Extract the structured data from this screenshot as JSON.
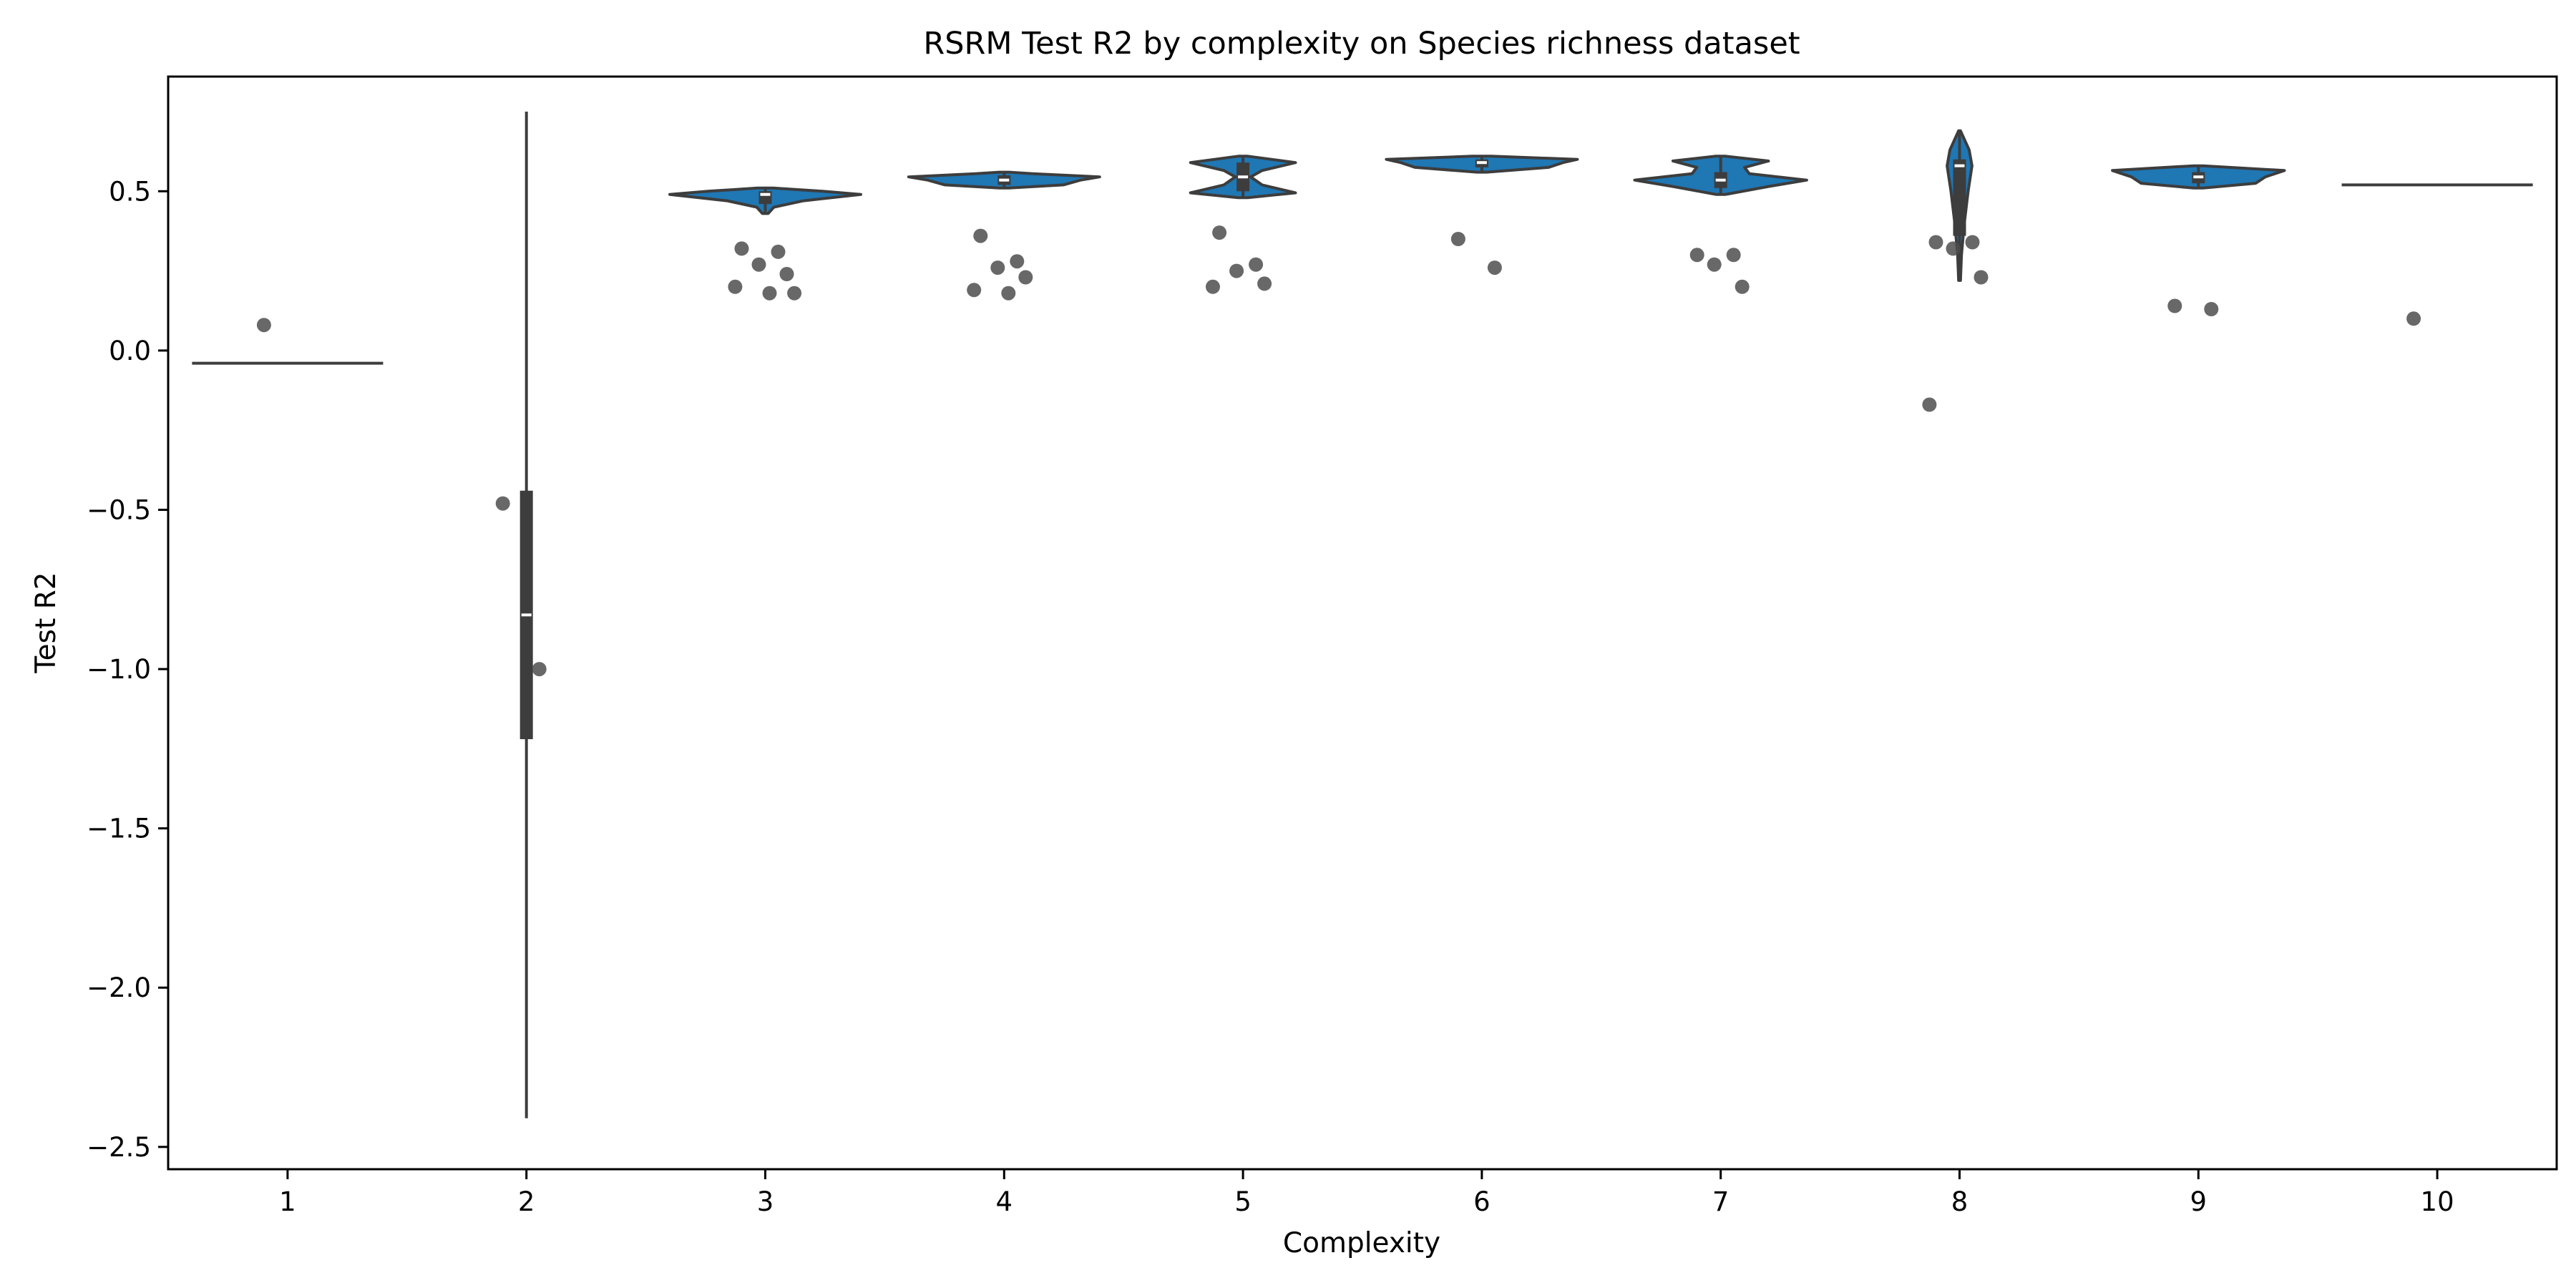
{
  "chart_data": {
    "type": "violin",
    "title": "RSRM Test R2 by complexity on Species richness dataset",
    "xlabel": "Complexity",
    "ylabel": "Test R2",
    "categories": [
      "1",
      "2",
      "3",
      "4",
      "5",
      "6",
      "7",
      "8",
      "9",
      "10"
    ],
    "ylim": [
      -2.57,
      0.86
    ],
    "yticks": [
      0.5,
      0.0,
      -0.5,
      -1.0,
      -1.5,
      -2.0,
      -2.5
    ],
    "ytick_labels": [
      "0.5",
      "0.0",
      "−0.5",
      "−1.0",
      "−1.5",
      "−2.0",
      "−2.5"
    ],
    "grid": false,
    "legend": "none",
    "violin_color": "#1f77b4",
    "box_color": "#3d3d3d",
    "point_color": "#4d4d4d",
    "violins": [
      {
        "category": "1",
        "line": -0.04
      },
      {
        "category": "2",
        "min": -2.41,
        "q1": -1.22,
        "median": -0.83,
        "q3": -0.44,
        "max": 0.75
      },
      {
        "category": "3",
        "min": 0.43,
        "q1": 0.46,
        "median": 0.49,
        "q3": 0.5,
        "max": 0.51,
        "profile": [
          [
            0.43,
            0.03
          ],
          [
            0.45,
            0.09
          ],
          [
            0.47,
            0.4
          ],
          [
            0.49,
            1.0
          ],
          [
            0.5,
            0.6
          ],
          [
            0.51,
            0.08
          ]
        ]
      },
      {
        "category": "4",
        "min": 0.51,
        "q1": 0.52,
        "median": 0.535,
        "q3": 0.55,
        "max": 0.56,
        "profile": [
          [
            0.51,
            0.05
          ],
          [
            0.52,
            0.62
          ],
          [
            0.535,
            0.8
          ],
          [
            0.545,
            1.0
          ],
          [
            0.555,
            0.3
          ],
          [
            0.56,
            0.05
          ]
        ]
      },
      {
        "category": "5",
        "min": 0.48,
        "q1": 0.5,
        "median": 0.545,
        "q3": 0.59,
        "max": 0.61,
        "profile": [
          [
            0.48,
            0.05
          ],
          [
            0.495,
            0.55
          ],
          [
            0.52,
            0.2
          ],
          [
            0.545,
            0.08
          ],
          [
            0.565,
            0.2
          ],
          [
            0.59,
            0.55
          ],
          [
            0.61,
            0.05
          ]
        ]
      },
      {
        "category": "6",
        "min": 0.56,
        "q1": 0.575,
        "median": 0.59,
        "q3": 0.6,
        "max": 0.61,
        "profile": [
          [
            0.56,
            0.05
          ],
          [
            0.575,
            0.7
          ],
          [
            0.59,
            0.85
          ],
          [
            0.6,
            1.0
          ],
          [
            0.61,
            0.1
          ]
        ]
      },
      {
        "category": "7",
        "min": 0.49,
        "q1": 0.51,
        "median": 0.535,
        "q3": 0.56,
        "max": 0.61,
        "profile": [
          [
            0.49,
            0.05
          ],
          [
            0.515,
            0.5
          ],
          [
            0.535,
            0.9
          ],
          [
            0.555,
            0.3
          ],
          [
            0.575,
            0.25
          ],
          [
            0.595,
            0.5
          ],
          [
            0.61,
            0.05
          ]
        ]
      },
      {
        "category": "8",
        "min": 0.22,
        "q1": 0.36,
        "median": 0.58,
        "q3": 0.6,
        "max": 0.69,
        "profile": [
          [
            0.22,
            0.01
          ],
          [
            0.3,
            0.02
          ],
          [
            0.4,
            0.05
          ],
          [
            0.5,
            0.09
          ],
          [
            0.58,
            0.13
          ],
          [
            0.63,
            0.1
          ],
          [
            0.69,
            0.01
          ]
        ]
      },
      {
        "category": "9",
        "min": 0.51,
        "q1": 0.525,
        "median": 0.545,
        "q3": 0.56,
        "max": 0.58,
        "profile": [
          [
            0.51,
            0.05
          ],
          [
            0.525,
            0.6
          ],
          [
            0.545,
            0.7
          ],
          [
            0.565,
            0.9
          ],
          [
            0.58,
            0.05
          ]
        ]
      },
      {
        "category": "10",
        "line": 0.52
      }
    ],
    "points": [
      {
        "category": "1",
        "values": [
          0.08
        ]
      },
      {
        "category": "2",
        "values": [
          -0.48,
          -1.0
        ]
      },
      {
        "category": "3",
        "values": [
          0.32,
          0.31,
          0.27,
          0.24,
          0.2,
          0.18,
          0.18
        ]
      },
      {
        "category": "4",
        "values": [
          0.36,
          0.28,
          0.26,
          0.23,
          0.19,
          0.18
        ]
      },
      {
        "category": "5",
        "values": [
          0.37,
          0.27,
          0.25,
          0.21,
          0.2
        ]
      },
      {
        "category": "6",
        "values": [
          0.35,
          0.26
        ]
      },
      {
        "category": "7",
        "values": [
          0.3,
          0.3,
          0.27,
          0.2
        ]
      },
      {
        "category": "8",
        "values": [
          0.34,
          0.34,
          0.32,
          0.23,
          -0.17
        ]
      },
      {
        "category": "9",
        "values": [
          0.14,
          0.13
        ]
      },
      {
        "category": "10",
        "values": [
          0.1
        ]
      }
    ]
  }
}
